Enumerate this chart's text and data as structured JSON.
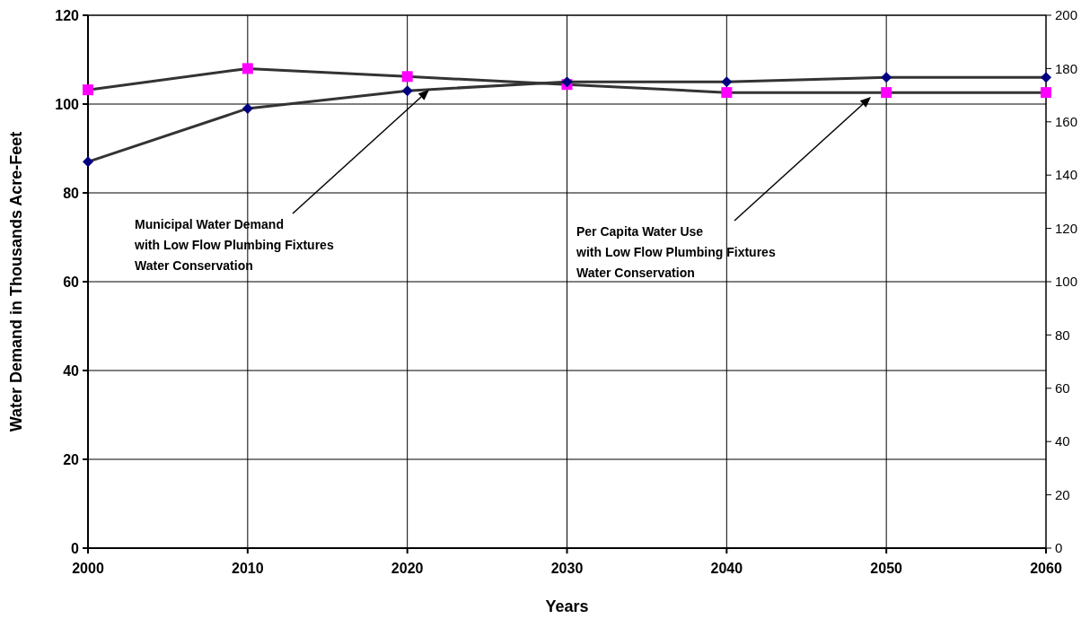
{
  "chart_data": {
    "type": "line",
    "xlabel": "Years",
    "ylabel": "Water Demand in Thousands Acre-Feet",
    "xlim": [
      2000,
      2060
    ],
    "xticks": [
      2000,
      2010,
      2020,
      2030,
      2040,
      2050,
      2060
    ],
    "ylim": [
      0,
      120
    ],
    "yticks": [
      0,
      20,
      40,
      60,
      80,
      100,
      120
    ],
    "y2lim": [
      0,
      200
    ],
    "y2ticks": [
      0,
      20,
      40,
      60,
      80,
      100,
      120,
      140,
      160,
      180,
      200
    ],
    "grid": true,
    "x": [
      2000,
      2010,
      2020,
      2030,
      2040,
      2050,
      2060
    ],
    "series": [
      {
        "color": "#000080",
        "marker": "diamond",
        "values": [
          87,
          99,
          103,
          105,
          105,
          106,
          106
        ]
      },
      {
        "color": "#ff00ff",
        "marker": "square",
        "axis": "y2",
        "values": [
          172,
          180,
          177,
          174,
          171,
          171,
          171
        ]
      }
    ],
    "annotations": [
      "Municipal Water Demand\nwith Low Flow Plumbing Fixtures\nWater Conservation",
      "Per Capita Water Use\nwith Low Flow Plumbing Fixtures\nWater Conservation"
    ]
  }
}
